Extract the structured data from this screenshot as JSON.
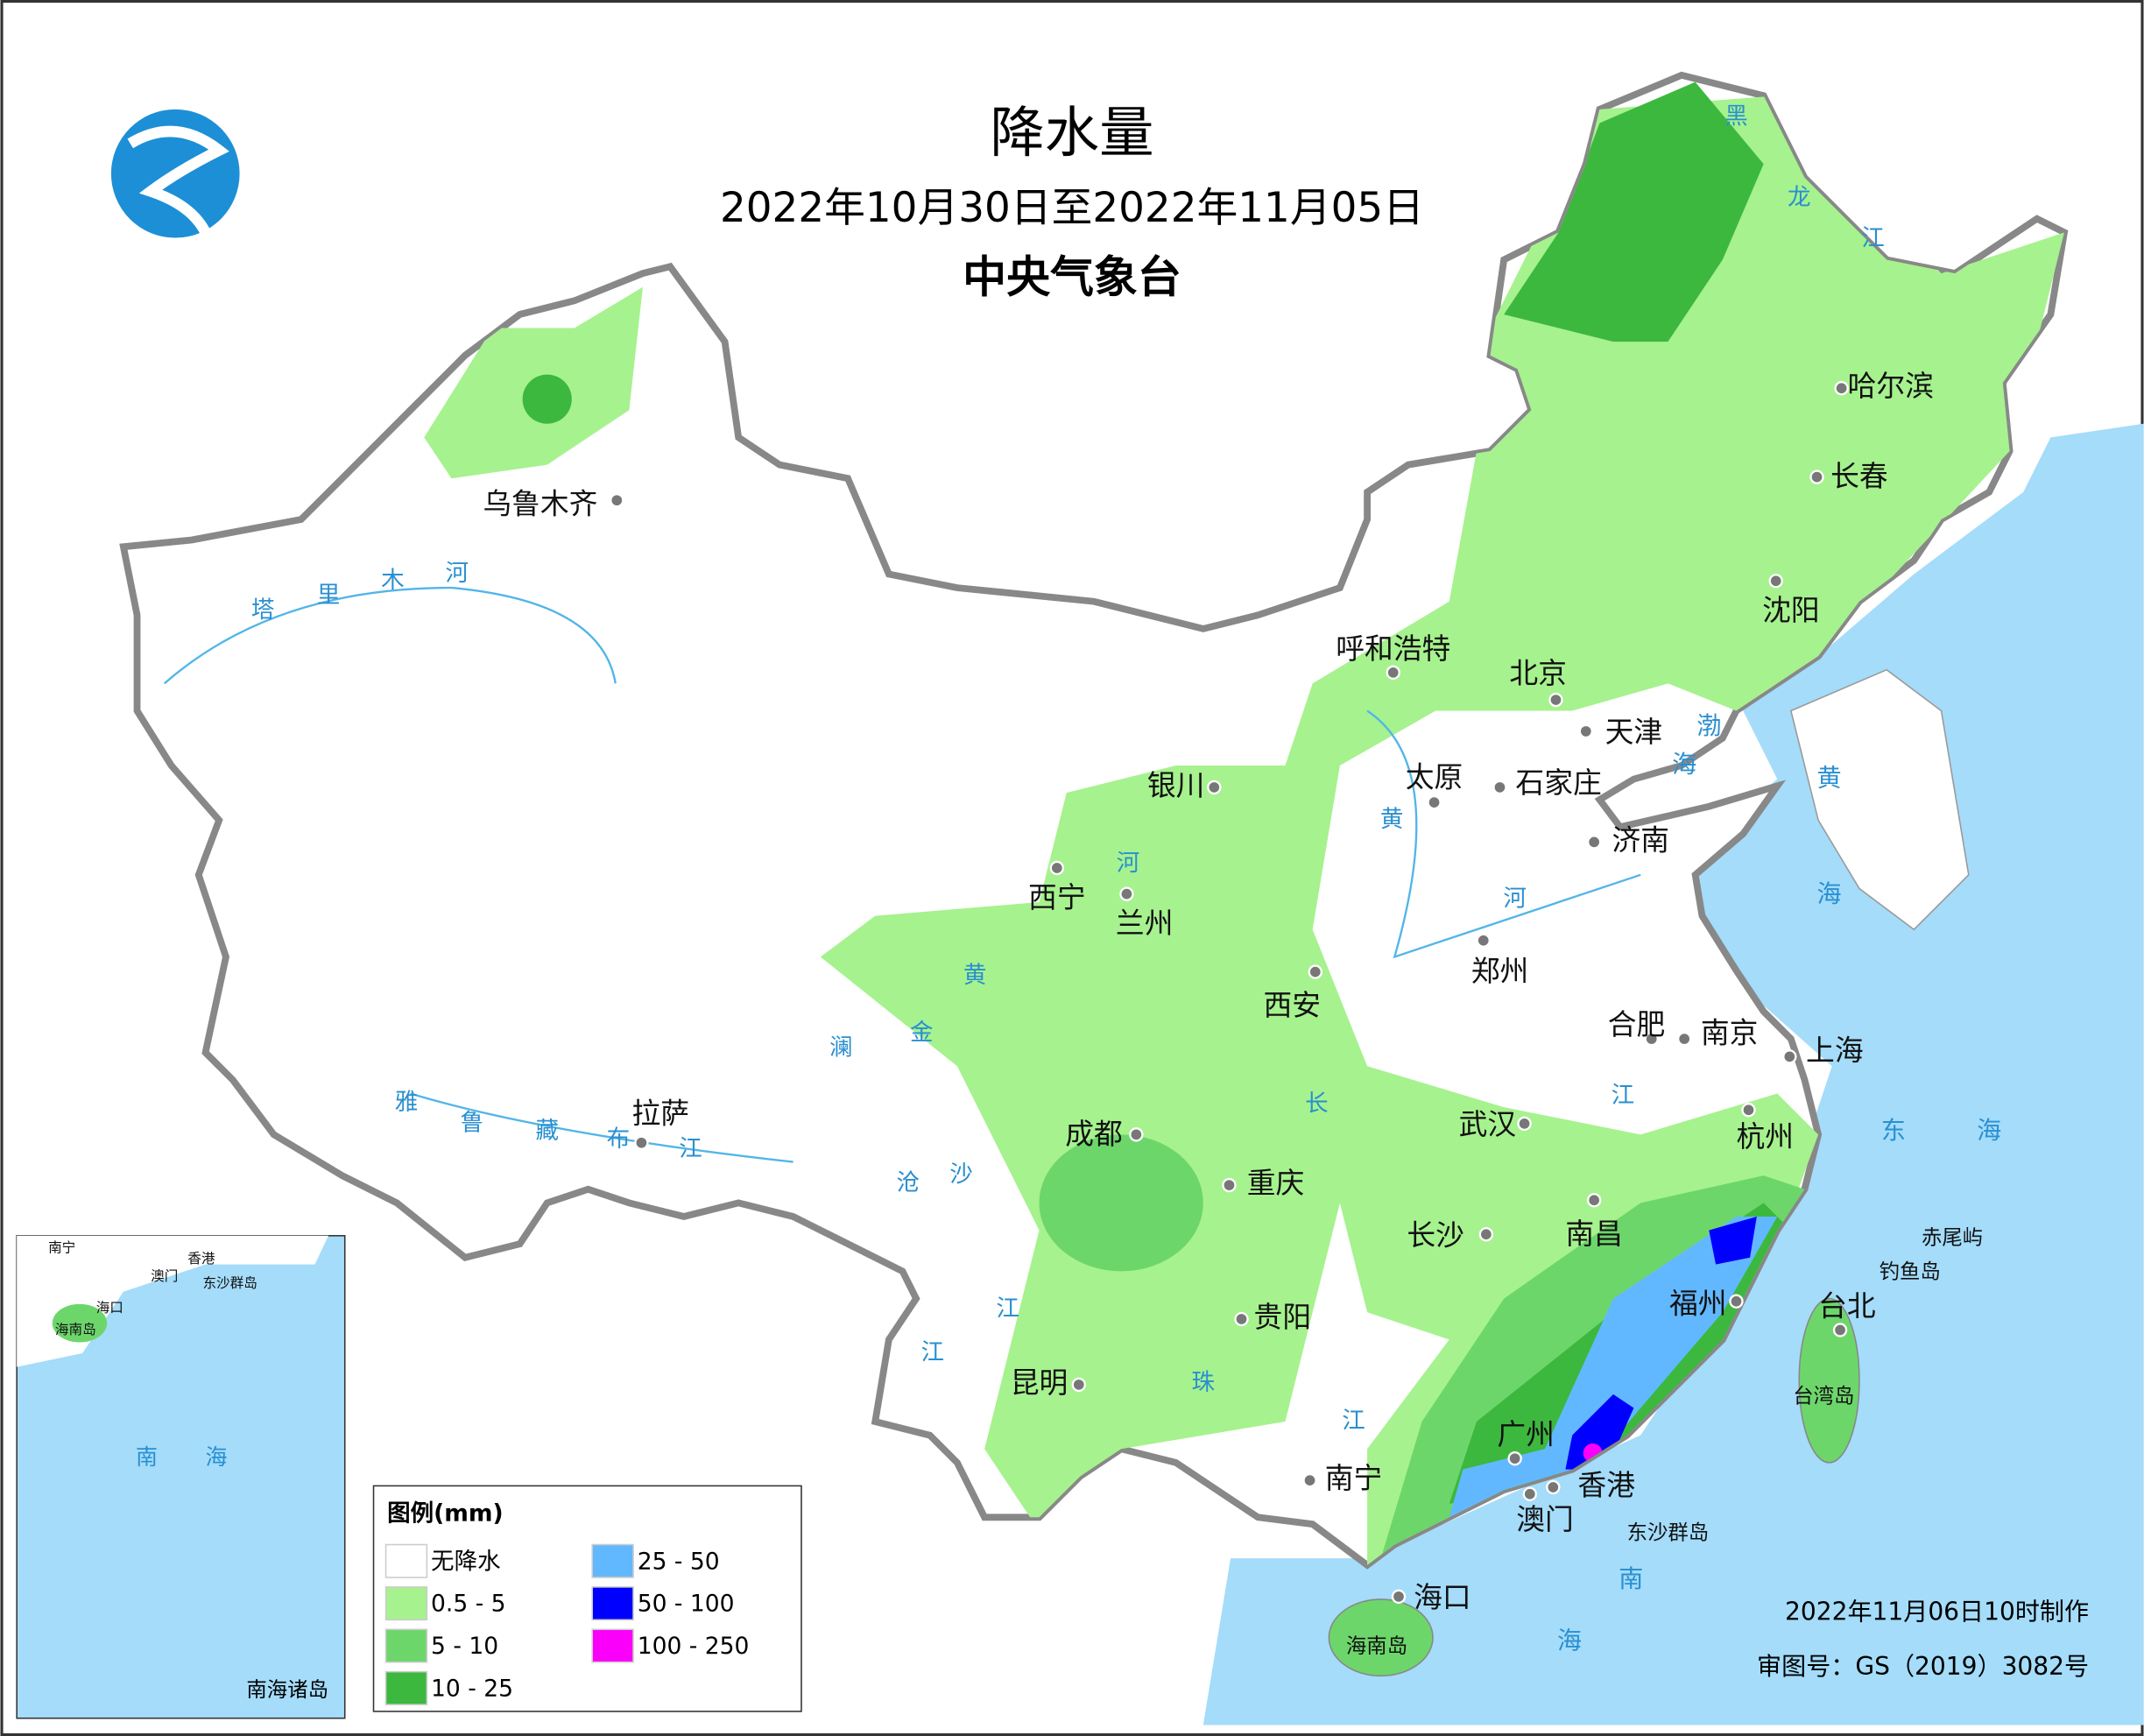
{
  "header": {
    "title": "降水量",
    "subtitle": "2022年10月30日至2022年11月05日",
    "issuer": "中央气象台"
  },
  "legend": {
    "title": "图例(mm)",
    "items": [
      {
        "label": "无降水",
        "color": "#ffffff"
      },
      {
        "label": "0.5 - 5",
        "color": "#a6f28e"
      },
      {
        "label": "5 - 10",
        "color": "#6dd66b"
      },
      {
        "label": "10 - 25",
        "color": "#3cb83e"
      },
      {
        "label": "25 - 50",
        "color": "#62b8ff"
      },
      {
        "label": "50 - 100",
        "color": "#0000fe"
      },
      {
        "label": "100 - 250",
        "color": "#fa00fa"
      }
    ]
  },
  "cities": [
    "乌鲁木齐",
    "呼和浩特",
    "北京",
    "天津",
    "银川",
    "太原",
    "石家庄",
    "济南",
    "西宁",
    "兰州",
    "郑州",
    "西安",
    "合肥",
    "南京",
    "上海",
    "拉萨",
    "武汉",
    "杭州",
    "成都",
    "重庆",
    "长沙",
    "南昌",
    "福州",
    "台北",
    "贵阳",
    "昆明",
    "南宁",
    "广州",
    "澳门",
    "香港",
    "海口",
    "哈尔滨",
    "长春",
    "沈阳"
  ],
  "river_labels": [
    "塔",
    "里",
    "木",
    "河",
    "黑",
    "龙",
    "江",
    "黄",
    "河",
    "河",
    "黄",
    "金",
    "澜",
    "沧",
    "沙",
    "长",
    "江",
    "江",
    "江",
    "珠",
    "江",
    "雅",
    "鲁",
    "藏",
    "布",
    "江"
  ],
  "sea_labels": [
    "渤",
    "海",
    "黄",
    "海",
    "东",
    "海",
    "南",
    "海"
  ],
  "islands": [
    "赤尾屿",
    "钓鱼岛",
    "台湾岛",
    "海南岛",
    "东沙群岛"
  ],
  "inset": {
    "title": "南海诸岛",
    "labels": [
      "南宁",
      "香港",
      "澳门",
      "东沙群岛",
      "海口",
      "海南岛",
      "南",
      "海"
    ]
  },
  "footer": {
    "made": "2022年11月06日10时制作",
    "approval": "审图号：GS（2019）3082号"
  }
}
